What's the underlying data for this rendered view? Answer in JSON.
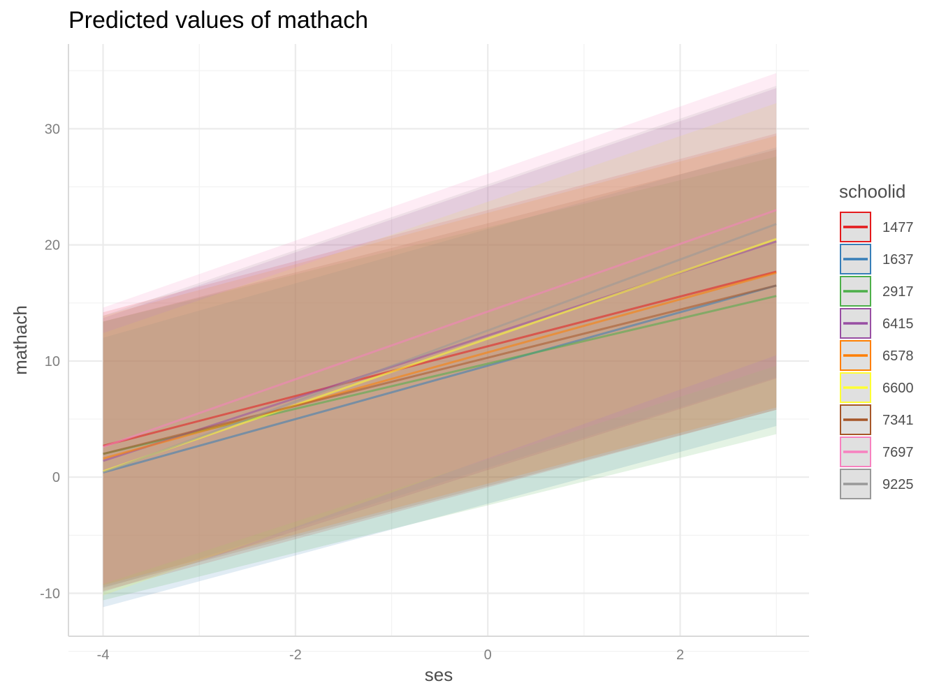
{
  "chart_data": {
    "type": "line",
    "title": "Predicted values of mathach",
    "xlabel": "ses",
    "ylabel": "mathach",
    "xlim": [
      -4.36,
      3.34
    ],
    "ylim": [
      -13.7,
      37.3
    ],
    "x_ticks": [
      -4,
      -2,
      0,
      2
    ],
    "y_ticks": [
      -10,
      0,
      10,
      20,
      30
    ],
    "x_range": [
      -4,
      3
    ],
    "grid": true,
    "legend": {
      "title": "schoolid",
      "position": "right"
    },
    "series": [
      {
        "name": "1477",
        "color": "#E41A1C",
        "line": [
          2.7,
          17.7
        ],
        "ci_low": [
          -9.8,
          5.8
        ],
        "ci_high": [
          14.2,
          29.6
        ]
      },
      {
        "name": "1637",
        "color": "#377EB8",
        "line": [
          0.4,
          16.5
        ],
        "ci_low": [
          -11.2,
          4.4
        ],
        "ci_high": [
          12.0,
          28.4
        ]
      },
      {
        "name": "2917",
        "color": "#4DAF4A",
        "line": [
          2.0,
          15.6
        ],
        "ci_low": [
          -10.6,
          3.7
        ],
        "ci_high": [
          13.4,
          27.6
        ]
      },
      {
        "name": "6415",
        "color": "#984EA3",
        "line": [
          1.4,
          20.3
        ],
        "ci_low": [
          -9.9,
          8.5
        ],
        "ci_high": [
          13.7,
          33.5
        ]
      },
      {
        "name": "6578",
        "color": "#FF7F00",
        "line": [
          1.6,
          17.6
        ],
        "ci_low": [
          -9.3,
          6.0
        ],
        "ci_high": [
          13.9,
          29.4
        ]
      },
      {
        "name": "6600",
        "color": "#FFFF33",
        "line": [
          0.5,
          20.5
        ],
        "ci_low": [
          -10.2,
          10.5
        ],
        "ci_high": [
          12.4,
          32.2
        ]
      },
      {
        "name": "7341",
        "color": "#A65628",
        "line": [
          2.0,
          16.5
        ],
        "ci_low": [
          -9.5,
          5.8
        ],
        "ci_high": [
          13.4,
          28.2
        ]
      },
      {
        "name": "7697",
        "color": "#F781BF",
        "line": [
          2.6,
          23.0
        ],
        "ci_low": [
          -9.2,
          9.6
        ],
        "ci_high": [
          14.6,
          34.8
        ]
      },
      {
        "name": "9225",
        "color": "#999999",
        "line": [
          0.4,
          21.8
        ],
        "ci_low": [
          -9.6,
          8.6
        ],
        "ci_high": [
          13.9,
          33.7
        ]
      }
    ]
  }
}
